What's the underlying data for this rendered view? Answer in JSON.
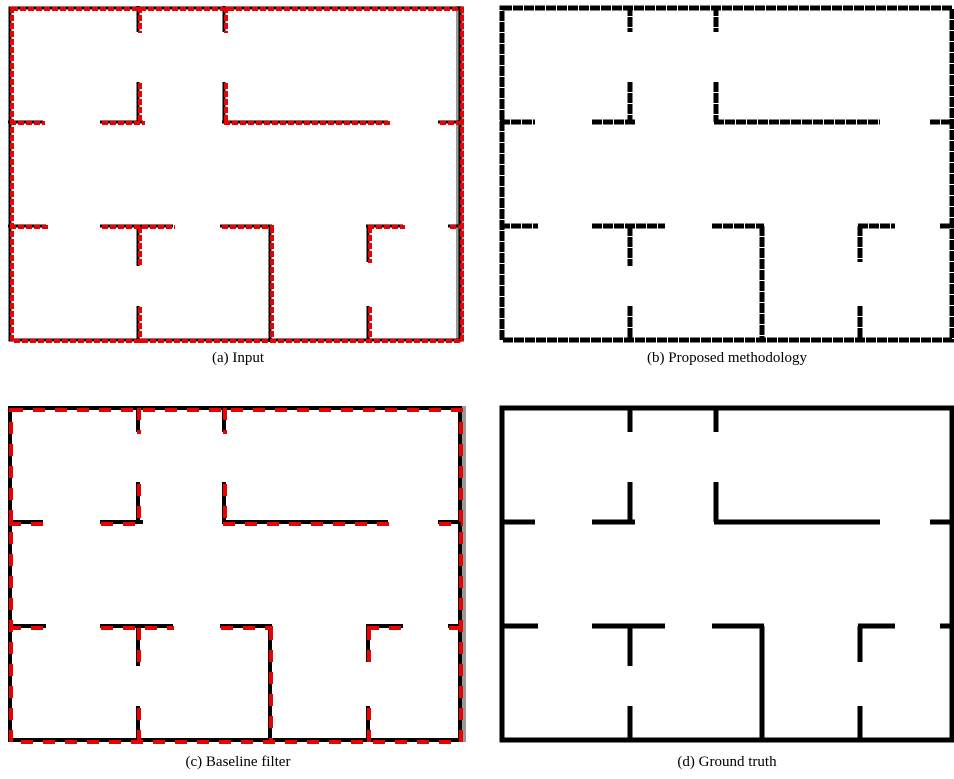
{
  "figure": {
    "panels": [
      {
        "caption": "(a) Input"
      },
      {
        "caption": "(b) Proposed methodology"
      },
      {
        "caption": "(c) Baseline filter"
      },
      {
        "caption": "(d) Ground truth"
      }
    ]
  }
}
